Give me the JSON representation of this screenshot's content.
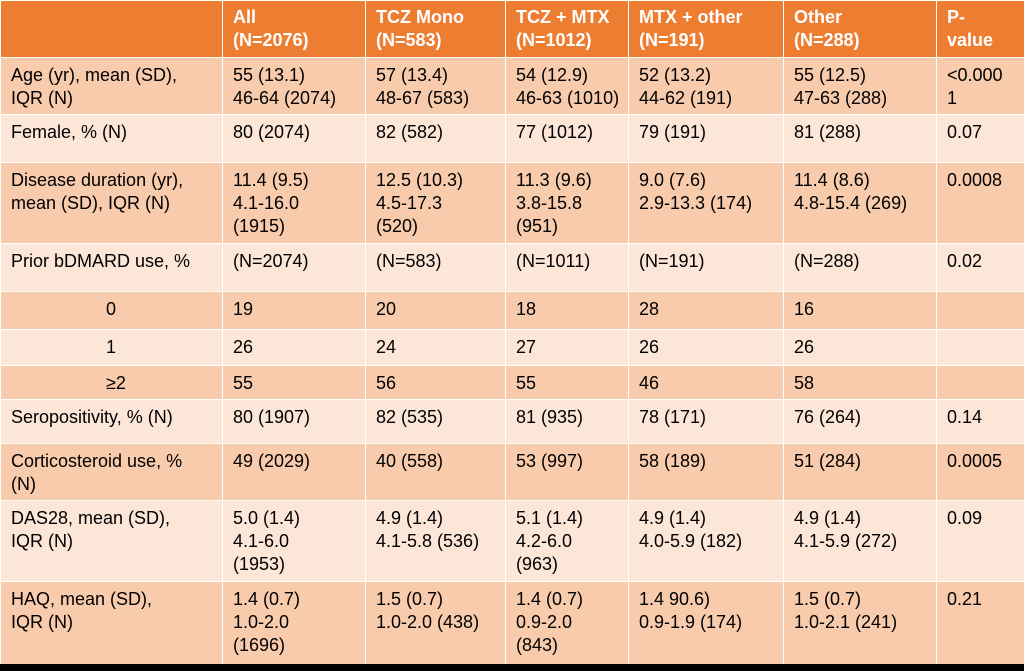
{
  "colors": {
    "header": "#ed7d31",
    "row_dark": "#f9cbad",
    "row_light": "#fce6d8",
    "bottom_bar": "#000000"
  },
  "headers": [
    "",
    "All\n(N=2076)",
    "TCZ Mono\n(N=583)",
    "TCZ + MTX\n(N=1012)",
    "MTX + other\n(N=191)",
    "Other\n(N=288)",
    "P-\nvalue"
  ],
  "rows": [
    [
      "Age (yr),  mean (SD),\nIQR (N)",
      "55 (13.1)\n46-64 (2074)",
      "57 (13.4)\n48-67 (583)",
      "54 (12.9)\n46-63 (1010)",
      "52 (13.2)\n44-62 (191)",
      "55 (12.5)\n47-63 (288)",
      "<0.000\n1"
    ],
    [
      "Female, % (N)",
      "80 (2074)",
      "82 (582)",
      "77 (1012)",
      "79 (191)",
      "81 (288)",
      "0.07"
    ],
    [
      "Disease duration (yr),\nmean (SD), IQR (N)",
      "11.4 (9.5)\n4.1-16.0\n(1915)",
      "12.5 (10.3)\n4.5-17.3\n(520)",
      "11.3 (9.6)\n3.8-15.8\n(951)",
      "9.0 (7.6)\n2.9-13.3 (174)",
      "11.4 (8.6)\n4.8-15.4 (269)",
      "0.0008"
    ],
    [
      "Prior bDMARD use, %",
      "(N=2074)",
      "(N=583)",
      "(N=1011)",
      "(N=191)",
      "(N=288)",
      "0.02"
    ],
    [
      "0",
      "19",
      "20",
      "18",
      "28",
      "16",
      ""
    ],
    [
      "1",
      "26",
      "24",
      "27",
      "26",
      "26",
      ""
    ],
    [
      "≥2",
      "55",
      "56",
      "55",
      "46",
      "58",
      ""
    ],
    [
      "Seropositivity, % (N)",
      "80 (1907)",
      "82 (535)",
      "81 (935)",
      "78 (171)",
      "76 (264)",
      "0.14"
    ],
    [
      "Corticosteroid use, %\n(N)",
      "49 (2029)",
      "40 (558)",
      "53 (997)",
      "58 (189)",
      "51 (284)",
      "0.0005"
    ],
    [
      "DAS28, mean (SD),\nIQR (N)",
      "5.0 (1.4)\n4.1-6.0\n(1953)",
      "4.9 (1.4)\n4.1-5.8 (536)",
      "5.1 (1.4)\n4.2-6.0\n(963)",
      "4.9 (1.4)\n4.0-5.9 (182)",
      "4.9 (1.4)\n4.1-5.9 (272)",
      "0.09"
    ],
    [
      "HAQ, mean (SD),\nIQR (N)",
      "1.4 (0.7)\n1.0-2.0\n(1696)",
      "1.5 (0.7)\n1.0-2.0 (438)",
      "1.4 (0.7)\n0.9-2.0\n(843)",
      "1.4 90.6)\n0.9-1.9 (174)",
      "1.5 (0.7)\n1.0-2.1 (241)",
      "0.21"
    ]
  ]
}
